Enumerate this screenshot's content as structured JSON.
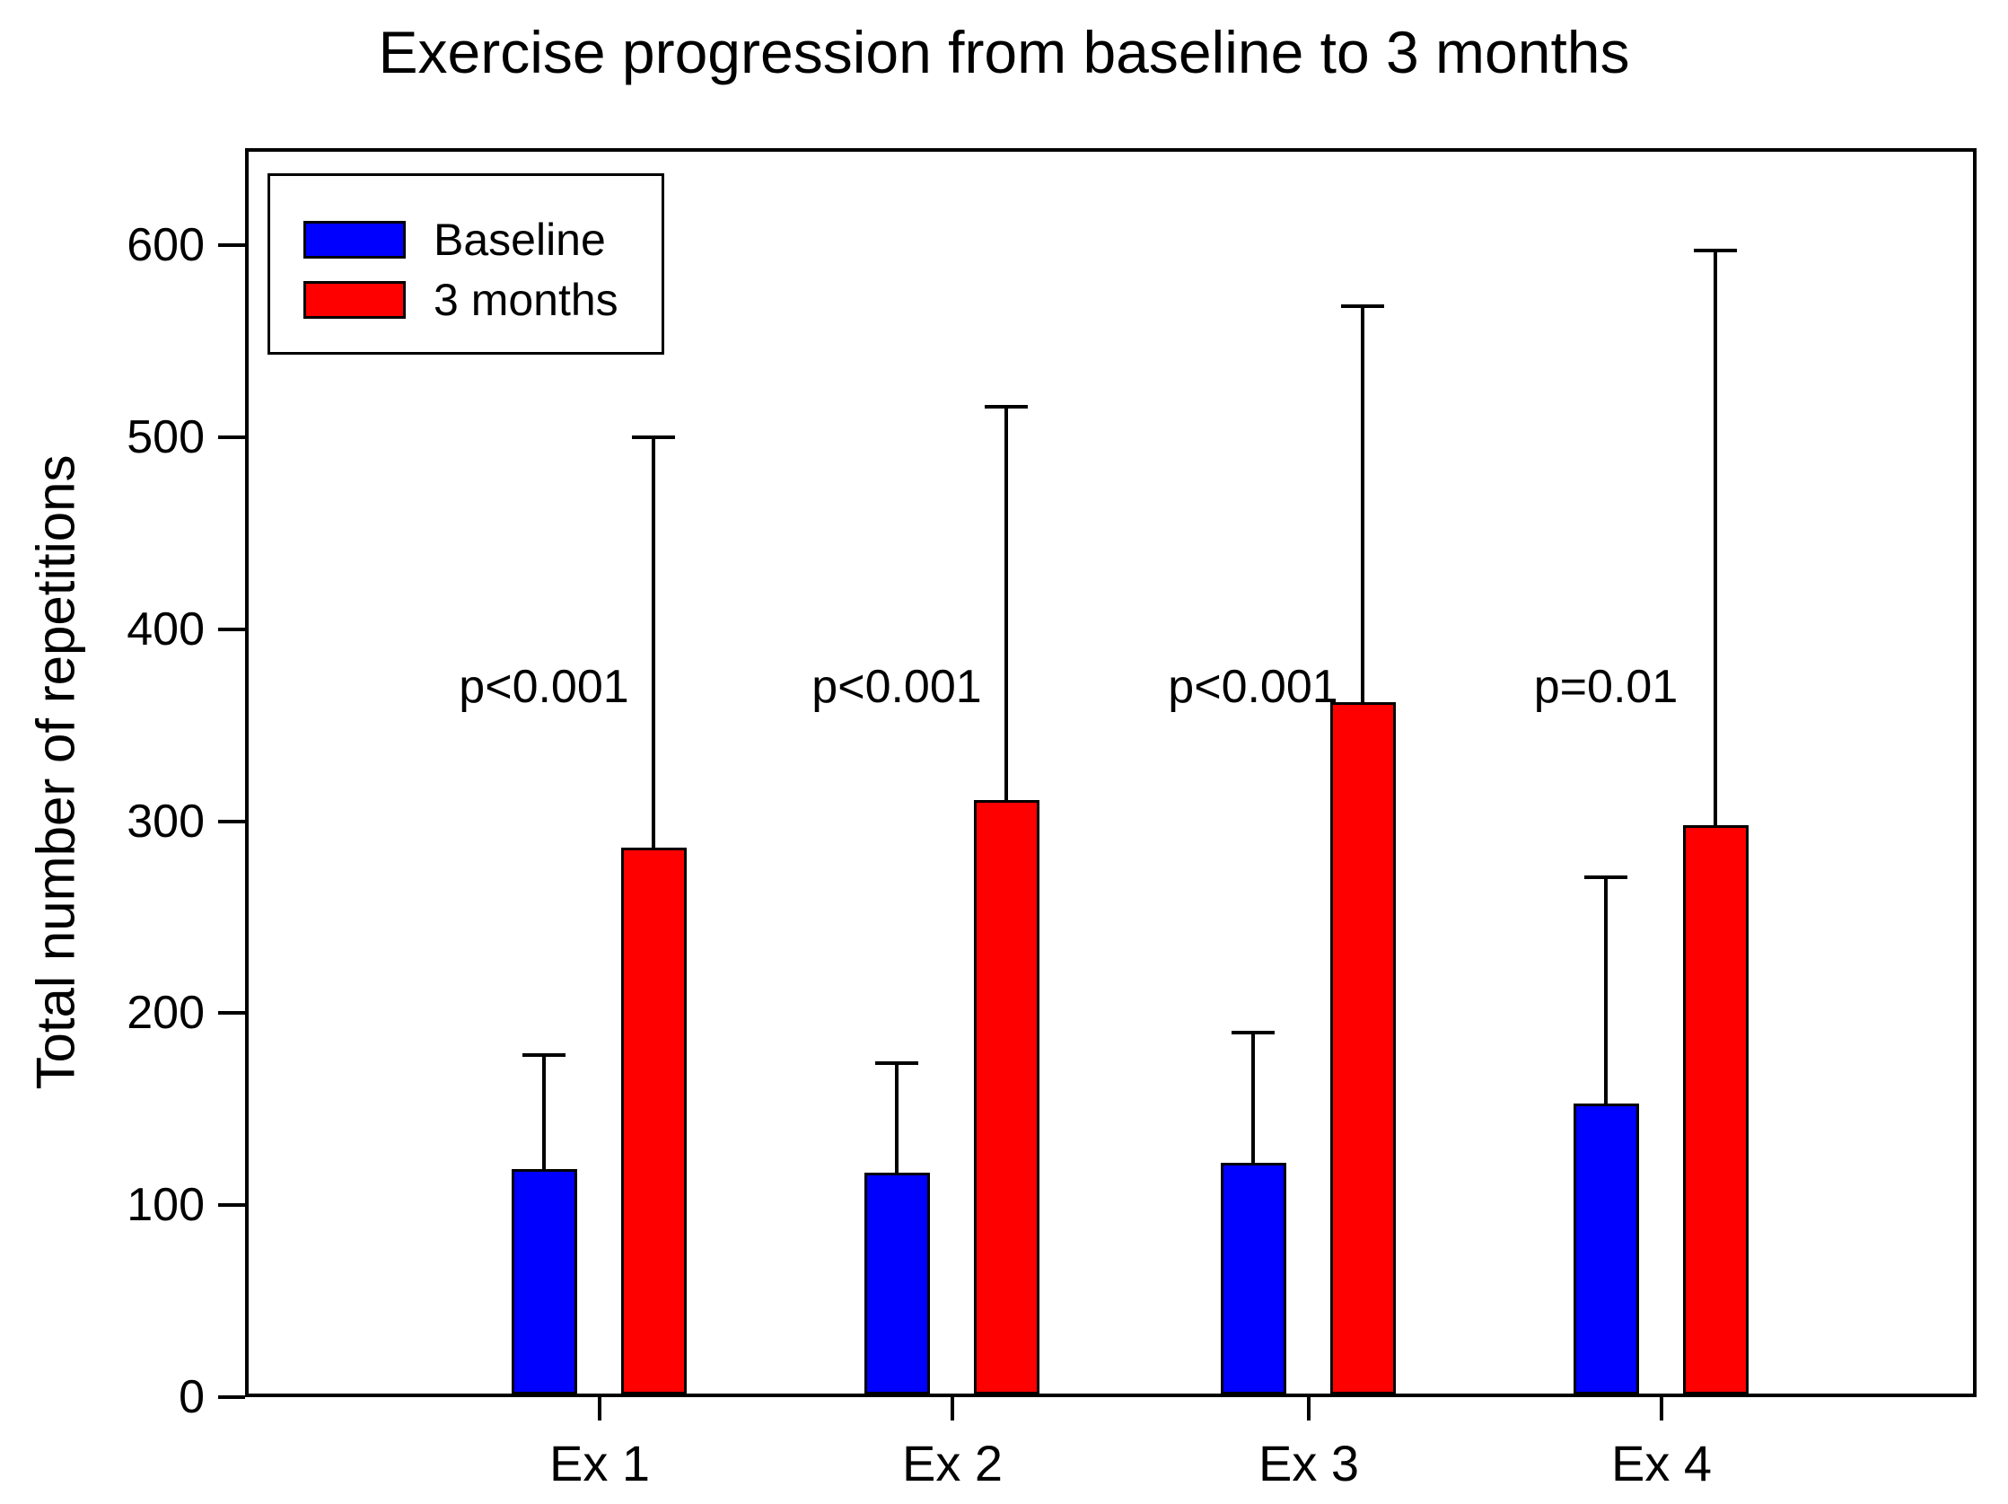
{
  "chart_data": {
    "type": "bar",
    "title": "Exercise progression from baseline to 3 months",
    "ylabel": "Total number of repetitions",
    "xlabel": "",
    "categories": [
      "Ex 1",
      "Ex 2",
      "Ex 3",
      "Ex 4"
    ],
    "ylim": [
      0,
      650
    ],
    "yticks": [
      0,
      100,
      200,
      300,
      400,
      500,
      600
    ],
    "grid": false,
    "legend_position": "top-left-inside",
    "series": [
      {
        "name": "Baseline",
        "color": "#0000ff",
        "values": [
          119,
          117,
          122,
          153
        ],
        "upper_error": [
          178,
          174,
          190,
          271
        ]
      },
      {
        "name": "3 months",
        "color": "#ff0000",
        "values": [
          286,
          311,
          362,
          298
        ],
        "upper_error": [
          500,
          516,
          568,
          597
        ]
      }
    ],
    "annotations": [
      {
        "text": "p<0.001",
        "category": "Ex 1"
      },
      {
        "text": "p<0.001",
        "category": "Ex 2"
      },
      {
        "text": "p<0.001",
        "category": "Ex 3"
      },
      {
        "text": "p=0.01",
        "category": "Ex 4"
      }
    ],
    "ink_color": "#000000",
    "background": "#ffffff"
  }
}
